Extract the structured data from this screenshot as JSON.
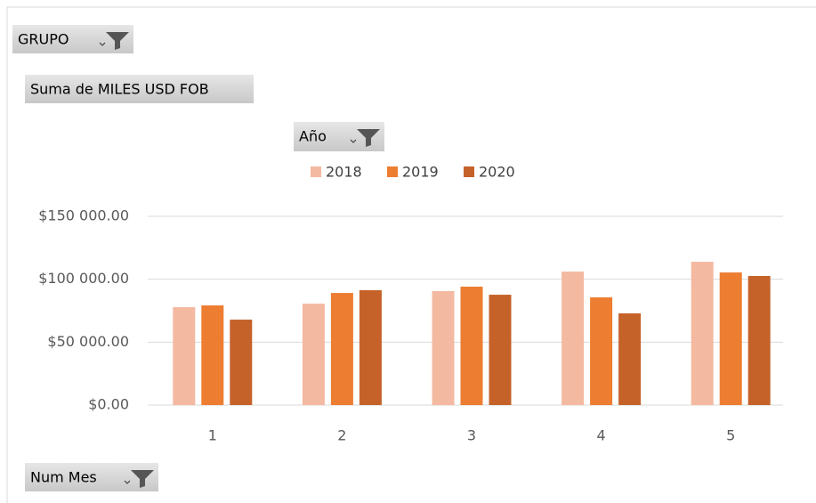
{
  "pivot_buttons": {
    "report_filter": "GRUPO",
    "values_field": "Suma de MILES USD FOB",
    "legend_field": "Año",
    "axis_field": "Num Mes"
  },
  "chart_data": {
    "type": "bar",
    "categories": [
      "1",
      "2",
      "3",
      "4",
      "5"
    ],
    "series": [
      {
        "name": "2018",
        "color": "#f4b9a1",
        "values": [
          77800,
          80600,
          90600,
          106100,
          113900
        ]
      },
      {
        "name": "2019",
        "color": "#ed7d31",
        "values": [
          79200,
          89100,
          94100,
          85600,
          105400
        ]
      },
      {
        "name": "2020",
        "color": "#c5622a",
        "values": [
          67900,
          91300,
          87700,
          72900,
          102600
        ]
      }
    ],
    "ylim": [
      0,
      150000
    ],
    "yticks": [
      {
        "value": 0,
        "label": "$0.00"
      },
      {
        "value": 50000,
        "label": "$50 000.00"
      },
      {
        "value": 100000,
        "label": "$100 000.00"
      },
      {
        "value": 150000,
        "label": "$150 000.00"
      }
    ],
    "grid": true,
    "legend": "top"
  }
}
